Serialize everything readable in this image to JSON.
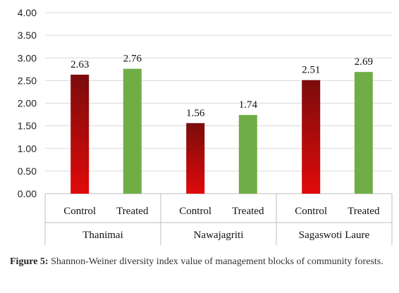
{
  "chart_data": {
    "type": "bar",
    "groups": [
      {
        "name": "Thanimai",
        "bars": [
          {
            "category": "Control",
            "value": 2.63,
            "label": "2.63"
          },
          {
            "category": "Treated",
            "value": 2.76,
            "label": "2.76"
          }
        ]
      },
      {
        "name": "Nawajagriti",
        "bars": [
          {
            "category": "Control",
            "value": 1.56,
            "label": "1.56"
          },
          {
            "category": "Treated",
            "value": 1.74,
            "label": "1.74"
          }
        ]
      },
      {
        "name": "Sagaswoti Laure",
        "bars": [
          {
            "category": "Control",
            "value": 2.51,
            "label": "2.51"
          },
          {
            "category": "Treated",
            "value": 2.69,
            "label": "2.69"
          }
        ]
      }
    ],
    "ylim": [
      0,
      4
    ],
    "yticks": [
      "0.00",
      "0.50",
      "1.00",
      "1.50",
      "2.00",
      "2.50",
      "3.00",
      "3.50",
      "4.00"
    ],
    "grid": true,
    "legend": "none",
    "colors": {
      "Control_top": "#7a0c0c",
      "Control_bottom": "#e00a0a",
      "Treated": "#70ad47"
    }
  },
  "caption": {
    "label": "Figure 5:",
    "text": " Shannon-Weiner diversity index value of management blocks of community forests."
  }
}
